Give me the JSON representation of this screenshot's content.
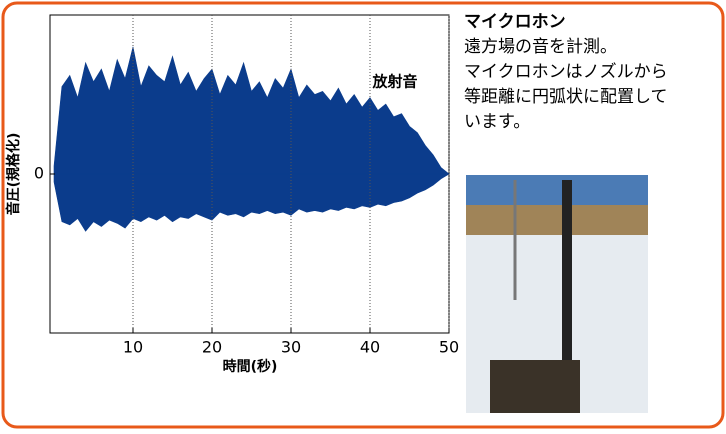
{
  "chart_data": {
    "type": "area",
    "annotation": "放射音",
    "xlabel": "時間(秒)",
    "ylabel": "音圧(規格化)",
    "x": [
      0,
      1,
      2,
      3,
      4,
      5,
      6,
      7,
      8,
      9,
      10,
      11,
      12,
      13,
      14,
      15,
      16,
      17,
      18,
      19,
      20,
      21,
      22,
      23,
      24,
      25,
      26,
      27,
      28,
      29,
      30,
      31,
      32,
      33,
      34,
      35,
      36,
      37,
      38,
      39,
      40,
      41,
      42,
      43,
      44,
      45,
      46,
      47,
      48,
      49,
      50
    ],
    "series": [
      {
        "color": "#0b3c8c",
        "values": [
          0.05,
          0.55,
          0.62,
          0.48,
          0.7,
          0.58,
          0.66,
          0.52,
          0.72,
          0.6,
          0.8,
          0.55,
          0.68,
          0.62,
          0.58,
          0.74,
          0.56,
          0.64,
          0.52,
          0.6,
          0.66,
          0.5,
          0.62,
          0.56,
          0.7,
          0.52,
          0.58,
          0.48,
          0.6,
          0.54,
          0.66,
          0.48,
          0.56,
          0.5,
          0.52,
          0.46,
          0.54,
          0.44,
          0.5,
          0.42,
          0.48,
          0.4,
          0.44,
          0.36,
          0.38,
          0.3,
          0.26,
          0.18,
          0.12,
          0.04,
          0
        ]
      },
      {
        "color": "#0b3c8c",
        "values": [
          -0.05,
          -0.3,
          -0.32,
          -0.28,
          -0.36,
          -0.3,
          -0.33,
          -0.29,
          -0.31,
          -0.34,
          -0.28,
          -0.3,
          -0.27,
          -0.29,
          -0.26,
          -0.3,
          -0.27,
          -0.28,
          -0.25,
          -0.27,
          -0.29,
          -0.24,
          -0.26,
          -0.25,
          -0.27,
          -0.24,
          -0.25,
          -0.23,
          -0.25,
          -0.24,
          -0.26,
          -0.22,
          -0.24,
          -0.23,
          -0.24,
          -0.22,
          -0.23,
          -0.21,
          -0.22,
          -0.2,
          -0.21,
          -0.19,
          -0.2,
          -0.18,
          -0.17,
          -0.15,
          -0.12,
          -0.1,
          -0.07,
          -0.03,
          0
        ]
      }
    ],
    "xlim": [
      0,
      50
    ],
    "xticks": [
      10,
      20,
      30,
      40,
      50
    ],
    "ylim": [
      -1,
      1
    ],
    "yticks": [
      0
    ],
    "grid": true
  },
  "panel": {
    "title": "マイクロホン",
    "lines": [
      "遠方場の音を計測。",
      "マイクロホンはノズルから",
      "等距離に円弧状に配置して",
      "います。"
    ]
  }
}
